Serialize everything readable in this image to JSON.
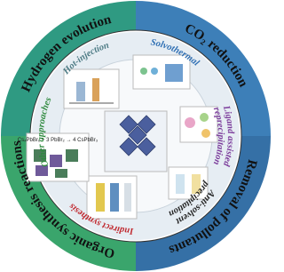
{
  "outer_sections": [
    {
      "label": "Hydrogen evolution"
    },
    {
      "label": "CO₂ reduction"
    },
    {
      "label": "Removal of pollutants"
    },
    {
      "label": "Organic synthesis reactions"
    }
  ],
  "methods": [
    {
      "lines": [
        "Solvothermal"
      ]
    },
    {
      "lines": [
        "Hot-injection"
      ]
    },
    {
      "lines": [
        "Ligand assisted",
        "reprecipitation"
      ]
    },
    {
      "lines": [
        "Anti-solvent",
        "precipitation"
      ]
    },
    {
      "lines": [
        "Indirect synthesis"
      ]
    },
    {
      "lines": [
        "Other approaches"
      ]
    }
  ],
  "center_equation": "Cs₄PbBr₆ + 3 PbBr₂ → 4 CsPbBr₃"
}
